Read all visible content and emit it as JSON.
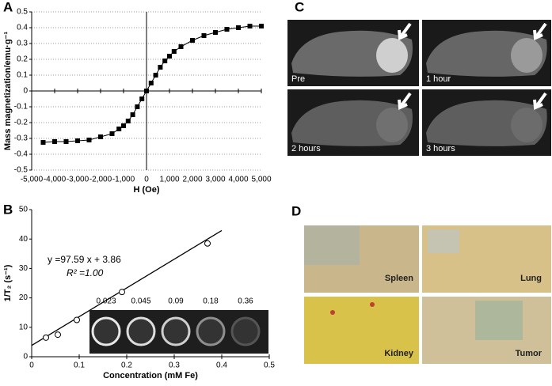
{
  "panel_labels": [
    "A",
    "B",
    "C",
    "D"
  ],
  "chart_data": [
    {
      "type": "line",
      "x_label": "H (Oe)",
      "y_label": "Mass magnetization/emu·g⁻¹",
      "color": "#000000",
      "grid": true,
      "xlim": [
        -5000,
        5000
      ],
      "xticks": [
        {
          "value": -5000,
          "label": "-5,000"
        },
        {
          "value": -4000,
          "label": "-4,000"
        },
        {
          "value": -3000,
          "label": "-3,000"
        },
        {
          "value": -2000,
          "label": "-2,000"
        },
        {
          "value": -1000,
          "label": "-1,000"
        },
        0,
        {
          "value": 1000,
          "label": "1,000"
        },
        {
          "value": 2000,
          "label": "2,000"
        },
        {
          "value": 3000,
          "label": "3,000"
        },
        {
          "value": 4000,
          "label": "4,000"
        },
        {
          "value": 5000,
          "label": "5,000"
        }
      ],
      "ylim": [
        -0.5,
        0.5
      ],
      "yticks": [
        -0.5,
        -0.4,
        -0.3,
        -0.2,
        -0.1,
        0,
        0.1,
        0.2,
        0.3,
        0.4,
        0.5
      ],
      "x": [
        -4500,
        -4000,
        -3500,
        -3000,
        -2500,
        -2000,
        -1500,
        -1200,
        -1000,
        -800,
        -600,
        -400,
        -200,
        0,
        200,
        400,
        600,
        800,
        1000,
        1200,
        1500,
        2000,
        2500,
        3000,
        3500,
        4000,
        4500,
        5000
      ],
      "values": [
        -0.325,
        -0.32,
        -0.32,
        -0.315,
        -0.31,
        -0.29,
        -0.27,
        -0.24,
        -0.22,
        -0.19,
        -0.15,
        -0.1,
        -0.05,
        0,
        0.05,
        0.1,
        0.15,
        0.19,
        0.22,
        0.25,
        0.28,
        0.32,
        0.35,
        0.37,
        0.39,
        0.4,
        0.41,
        0.41
      ]
    },
    {
      "type": "scatter",
      "x_label": "Concentration (mM Fe)",
      "y_label": "1/T₂ (s⁻¹)",
      "color": "#000000",
      "annotations": [
        "y =97.59 x + 3.86",
        "R² =1.00"
      ],
      "inset_labels": [
        "0.023",
        "0.045",
        "0.09",
        "0.18",
        "0.36"
      ],
      "xlim": [
        0,
        0.5
      ],
      "xticks": [
        0,
        0.1,
        0.2,
        0.3,
        0.4,
        0.5
      ],
      "ylim": [
        0,
        50
      ],
      "yticks": [
        0,
        10,
        20,
        30,
        40,
        50
      ],
      "x": [
        0.03,
        0.055,
        0.095,
        0.19,
        0.37
      ],
      "values": [
        6.5,
        7.5,
        12.5,
        22,
        38.5
      ],
      "fit": {
        "x": [
          0,
          0.4
        ],
        "values": [
          3.86,
          42.9
        ]
      }
    }
  ],
  "mri": {
    "labels": [
      "Pre",
      "1 hour",
      "2 hours",
      "3 hours"
    ]
  },
  "histology": {
    "labels": [
      "Spleen",
      "Lung",
      "Kidney",
      "Tumor"
    ]
  }
}
